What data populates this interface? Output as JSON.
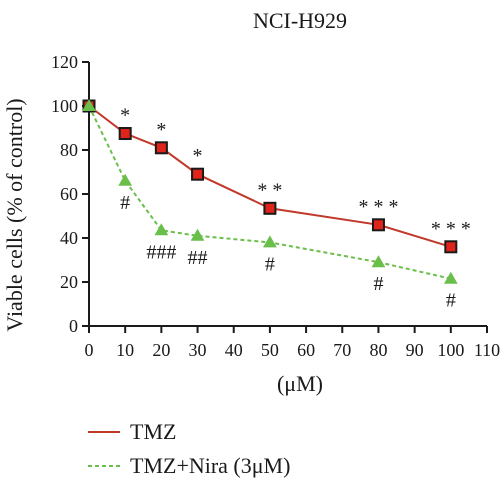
{
  "chart_data": {
    "type": "line",
    "title": "NCI-H929",
    "xlabel": "(μM)",
    "ylabel": "Viable cells (% of control)",
    "xlim": [
      0,
      110
    ],
    "ylim": [
      0,
      120
    ],
    "x_ticks": [
      "0",
      "10",
      "20",
      "30",
      "40",
      "50",
      "60",
      "70",
      "80",
      "90",
      "100",
      "110"
    ],
    "y_ticks": [
      "0",
      "20",
      "40",
      "60",
      "80",
      "100",
      "120"
    ],
    "grid": false,
    "legend": "bottom",
    "series": [
      {
        "name": "TMZ",
        "color": "#c0392b",
        "marker": "square",
        "x": [
          0,
          10,
          20,
          30,
          50,
          80,
          100
        ],
        "y": [
          100,
          87.5,
          81,
          69,
          53.5,
          46,
          36
        ],
        "annotations": [
          "",
          "*",
          "*",
          "*",
          "* *",
          "* * *",
          "* * *"
        ]
      },
      {
        "name": "TMZ+Nira (3μM)",
        "color": "#6abf4b",
        "marker": "triangle",
        "x": [
          0,
          10,
          20,
          30,
          50,
          80,
          100
        ],
        "y": [
          100,
          66,
          43.5,
          41,
          38,
          29,
          21.5
        ],
        "annotations": [
          "",
          "#",
          "###",
          "##",
          "#",
          "#",
          "#"
        ]
      }
    ]
  }
}
